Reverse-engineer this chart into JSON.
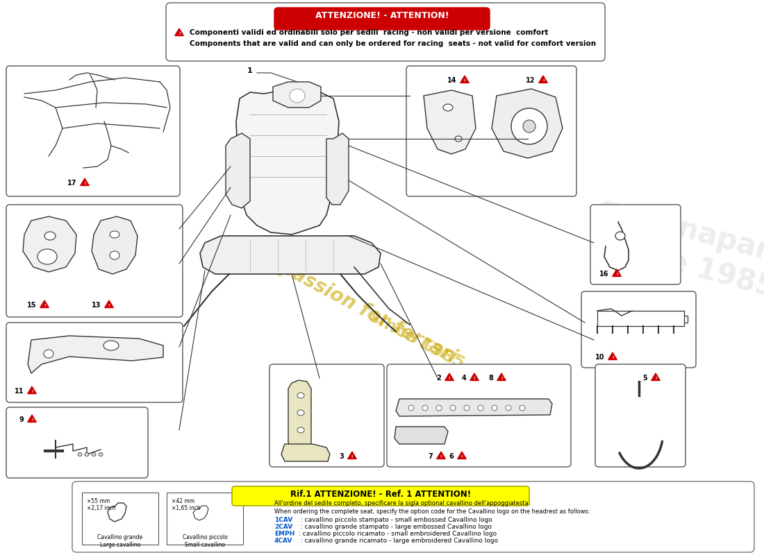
{
  "bg_color": "#ffffff",
  "title_attention": "ATTENZIONE! - ATTENTION!",
  "warning_text_it": "Componenti validi ed ordinabili solo per sedili  racing - non validi per versione  comfort",
  "warning_text_en": "Components that are valid and can only be ordered for racing  seats - not valid for comfort version",
  "ref1_title": "Rif.1 ATTENZIONE! - Ref. 1 ATTENTION!",
  "ref1_line1": "All'ordine del sedile completo, specificare la sigla optional cavallino dell'appoggiatesta:",
  "ref1_line2": "When ordering the complete seat, specify the option code for the Cavallino logo on the headrest as follows:",
  "ref1_1cav": "1CAV",
  "ref1_1cav_text": " : cavallino piccolo stampato - small embossed Cavallino logo",
  "ref1_2cav": "2CAV",
  "ref1_2cav_text": " : cavallino grande stampato - large embossed Cavallino logo",
  "ref1_emph": "EMPH",
  "ref1_emph_text": ": cavallino piccolo ricamato - small embroidered Cavallino logo",
  "ref1_4cav": "4CAV",
  "ref1_4cav_text": " : cavallino grande ricamato - large embroidered Cavallino logo",
  "cavallino_grande_label": "Cavallino grande\nLarge cavallino",
  "cavallino_piccolo_label": "Cavallino piccolo\nSmall cavallino",
  "grande_dims": "×55 mm\n×2,17 inch",
  "piccolo_dims": "×42 mm\n×1,65 inch",
  "watermark_color": "#c8a800",
  "box_edge": "#555555",
  "line_color": "#333333",
  "drawing_color": "#333333"
}
